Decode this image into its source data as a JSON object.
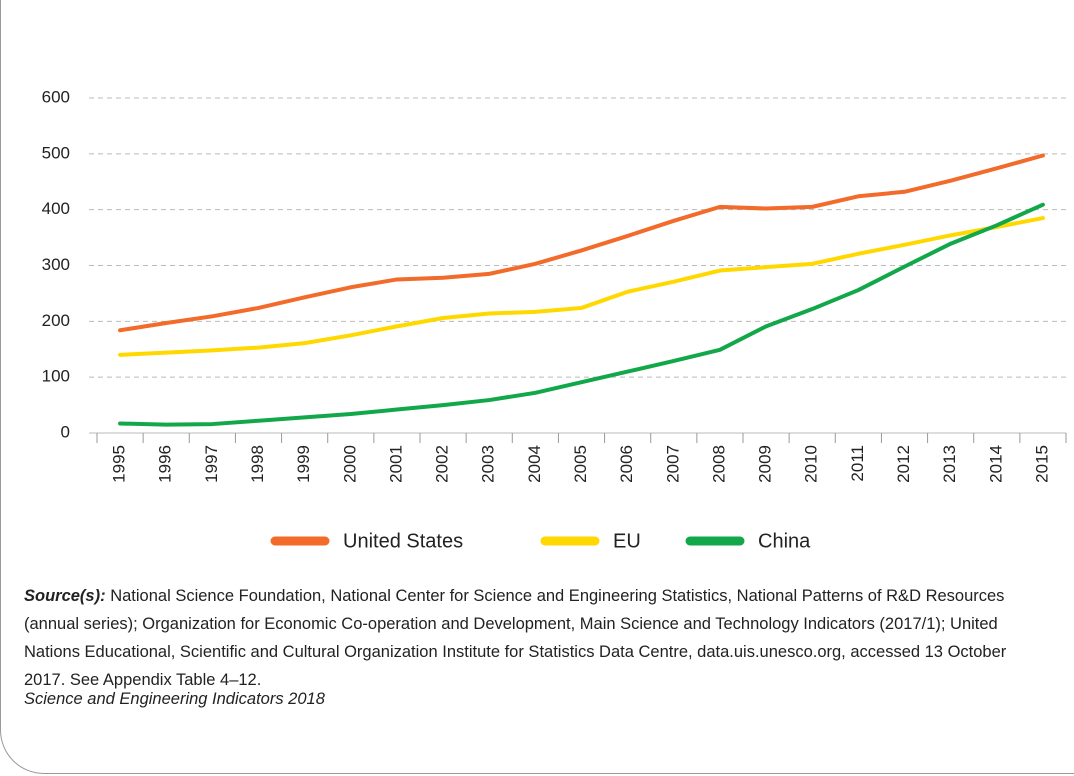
{
  "chart_data": {
    "type": "line",
    "categories": [
      "1995",
      "1996",
      "1997",
      "1998",
      "1999",
      "2000",
      "2001",
      "2002",
      "2003",
      "2004",
      "2005",
      "2006",
      "2007",
      "2008",
      "2009",
      "2010",
      "2011",
      "2012",
      "2013",
      "2014",
      "2015"
    ],
    "series": [
      {
        "name": "United States",
        "color": "#f26b2a",
        "values": [
          184,
          197,
          209,
          224,
          243,
          261,
          275,
          278,
          285,
          303,
          327,
          353,
          380,
          405,
          402,
          405,
          424,
          432,
          452,
          474,
          497
        ]
      },
      {
        "name": "EU",
        "color": "#ffd800",
        "values": [
          140,
          144,
          148,
          153,
          161,
          175,
          191,
          206,
          214,
          217,
          224,
          253,
          271,
          291,
          297,
          303,
          321,
          337,
          354,
          369,
          385
        ]
      },
      {
        "name": "China",
        "color": "#12a84a",
        "values": [
          17,
          15,
          16,
          22,
          28,
          34,
          42,
          50,
          59,
          72,
          91,
          110,
          129,
          149,
          191,
          222,
          256,
          298,
          339,
          372,
          409
        ]
      }
    ],
    "ylim": [
      0,
      600
    ],
    "yticks": [
      0,
      100,
      200,
      300,
      400,
      500,
      600
    ],
    "grid": true
  },
  "source_label": "Source(s):",
  "source_text": "National Science Foundation, National Center for Science and Engineering Statistics, National Patterns of R&D Resources (annual series); Organization for Economic Co-operation and Development, Main Science and Technology Indicators (2017/1); United Nations Educational, Scientific and Cultural Organization Institute for Statistics Data Centre, data.uis.unesco.org, accessed 13 October 2017. See Appendix Table 4–12.",
  "footer": "Science and Engineering Indicators 2018"
}
